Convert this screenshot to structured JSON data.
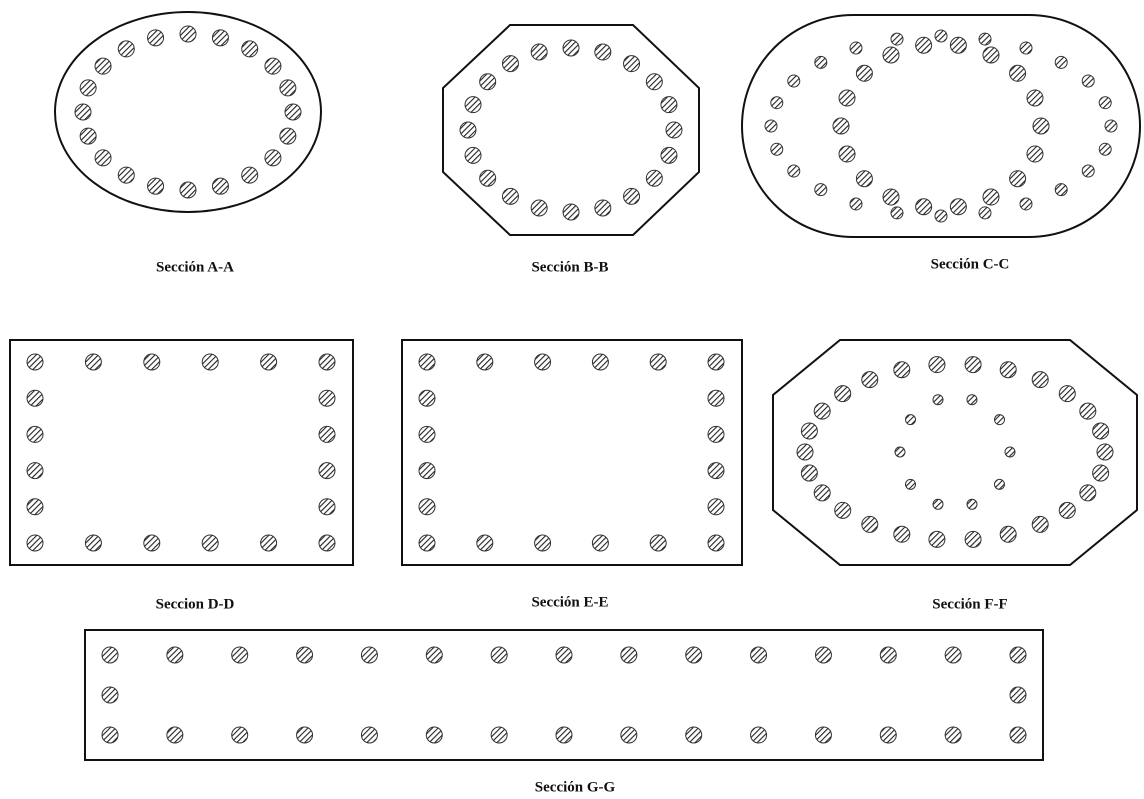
{
  "sections": [
    {
      "label": "Sección A-A"
    },
    {
      "label": "Sección B-B"
    },
    {
      "label": "Sección C-C"
    },
    {
      "label": "Seccion D-D"
    },
    {
      "label": "Sección E-E"
    },
    {
      "label": "Sección F-F"
    },
    {
      "label": "Sección G-G"
    }
  ]
}
